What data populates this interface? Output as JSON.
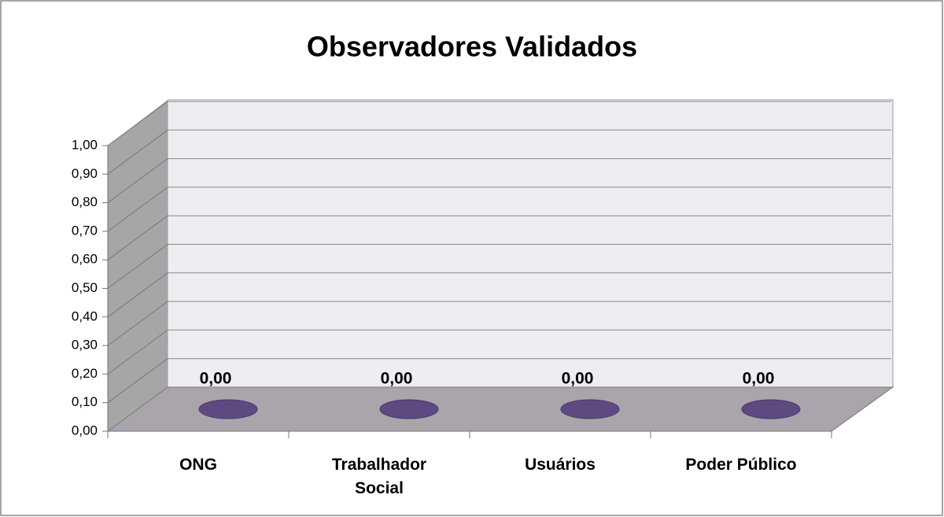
{
  "chart_data": {
    "type": "bar",
    "title": "Observadores Validados",
    "categories": [
      "ONG",
      "Trabalhador Social",
      "Usuários",
      "Poder Público"
    ],
    "values": [
      0,
      0,
      0,
      0
    ],
    "value_labels": [
      "0,00",
      "0,00",
      "0,00",
      "0,00"
    ],
    "color": "#5e4a80",
    "ylim": [
      0,
      1
    ],
    "yticks": [
      {
        "value": 0,
        "label": "0,00"
      },
      {
        "value": 0.1,
        "label": "0,10"
      },
      {
        "value": 0.2,
        "label": "0,20"
      },
      {
        "value": 0.3,
        "label": "0,30"
      },
      {
        "value": 0.4,
        "label": "0,40"
      },
      {
        "value": 0.5,
        "label": "0,50"
      },
      {
        "value": 0.6,
        "label": "0,60"
      },
      {
        "value": 0.7,
        "label": "0,70"
      },
      {
        "value": 0.8,
        "label": "0,80"
      },
      {
        "value": 0.9,
        "label": "0,90"
      },
      {
        "value": 1,
        "label": "1,00"
      }
    ],
    "grid": true
  }
}
